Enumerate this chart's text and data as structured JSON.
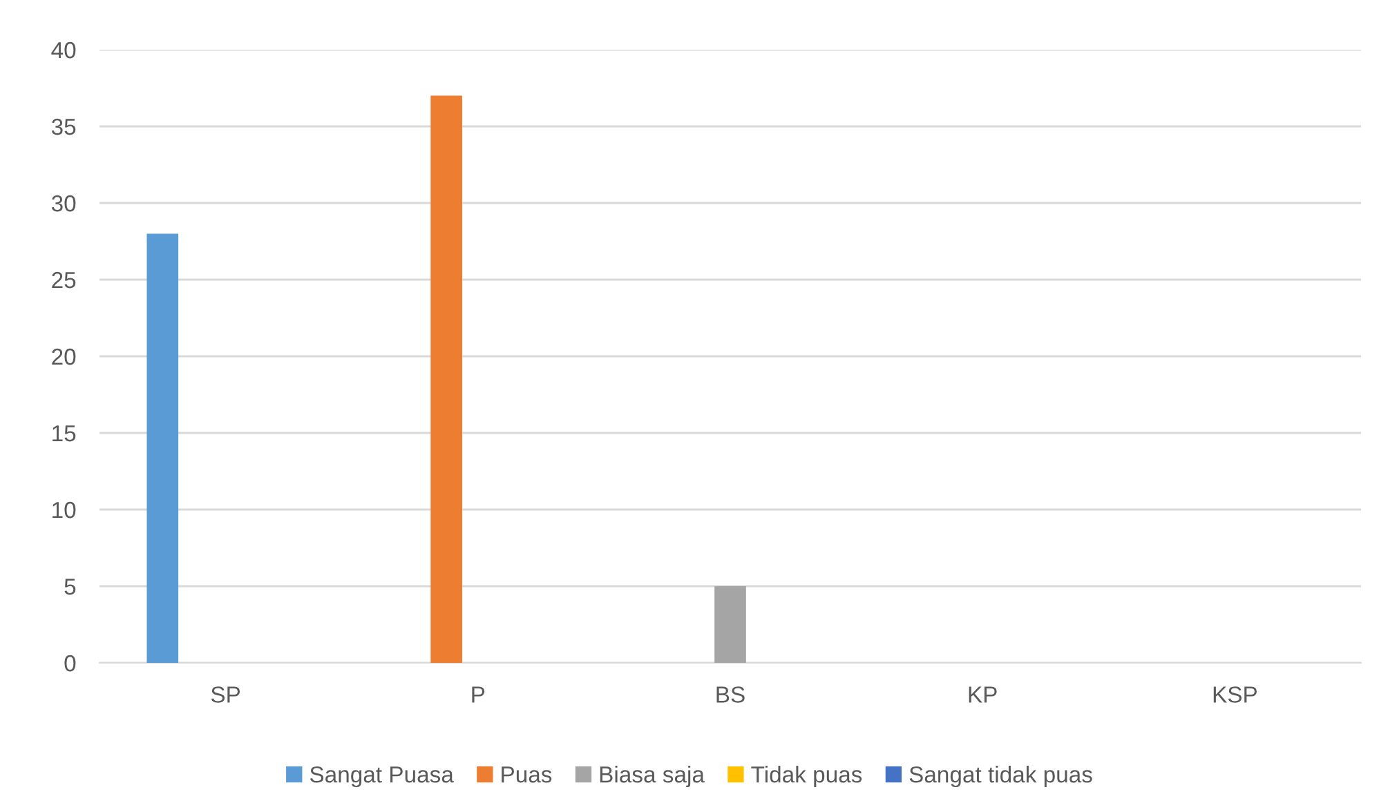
{
  "chart_data": {
    "type": "bar",
    "categories": [
      "SP",
      "P",
      "BS",
      "KP",
      "KSP"
    ],
    "series": [
      {
        "name": "Sangat Puasa",
        "color": "#5b9bd5",
        "values": [
          28,
          0,
          0,
          0,
          0
        ]
      },
      {
        "name": "Puas",
        "color": "#ed7d31",
        "values": [
          0,
          37,
          0,
          0,
          0
        ]
      },
      {
        "name": "Biasa saja",
        "color": "#a5a5a5",
        "values": [
          0,
          0,
          5,
          0,
          0
        ]
      },
      {
        "name": "Tidak puas",
        "color": "#ffc000",
        "values": [
          0,
          0,
          0,
          0,
          0
        ]
      },
      {
        "name": "Sangat tidak puas",
        "color": "#4472c4",
        "values": [
          0,
          0,
          0,
          0,
          0
        ]
      }
    ],
    "ylim": [
      0,
      40
    ],
    "yticks": [
      0,
      5,
      10,
      15,
      20,
      25,
      30,
      35,
      40
    ],
    "grid": "y",
    "legend": "bottom"
  }
}
